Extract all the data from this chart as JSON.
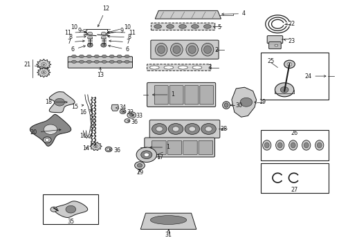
{
  "bg_color": "#ffffff",
  "line_color": "#1a1a1a",
  "figsize": [
    4.9,
    3.6
  ],
  "dpi": 100,
  "label_fontsize": 5.8,
  "labels": {
    "4": [
      0.695,
      0.947,
      0.72,
      0.947
    ],
    "5": [
      0.62,
      0.892,
      0.655,
      0.892
    ],
    "2": [
      0.61,
      0.785,
      0.64,
      0.785
    ],
    "3": [
      0.58,
      0.718,
      0.612,
      0.718
    ],
    "1a": [
      0.558,
      0.598,
      0.528,
      0.598
    ],
    "19": [
      0.74,
      0.588,
      0.768,
      0.588
    ],
    "30": [
      0.672,
      0.572,
      0.7,
      0.572
    ],
    "28": [
      0.63,
      0.465,
      0.66,
      0.465
    ],
    "1b": [
      0.54,
      0.4,
      0.51,
      0.4
    ],
    "17": [
      0.44,
      0.372,
      0.465,
      0.355
    ],
    "29": [
      0.412,
      0.33,
      0.432,
      0.31
    ],
    "31": [
      0.497,
      0.065,
      0.497,
      0.038
    ],
    "12": [
      0.312,
      0.96,
      0.312,
      0.98
    ],
    "10a": [
      0.245,
      0.892,
      0.218,
      0.892
    ],
    "10b": [
      0.345,
      0.892,
      0.372,
      0.892
    ],
    "9a": [
      0.258,
      0.878,
      0.232,
      0.878
    ],
    "9b": [
      0.33,
      0.878,
      0.356,
      0.878
    ],
    "11a": [
      0.23,
      0.87,
      0.202,
      0.87
    ],
    "11b": [
      0.362,
      0.87,
      0.39,
      0.87
    ],
    "8a": [
      0.238,
      0.852,
      0.21,
      0.852
    ],
    "8b": [
      0.352,
      0.852,
      0.38,
      0.852
    ],
    "7a": [
      0.232,
      0.83,
      0.205,
      0.83
    ],
    "7b": [
      0.35,
      0.83,
      0.377,
      0.83
    ],
    "6a": [
      0.244,
      0.8,
      0.218,
      0.8
    ],
    "6b": [
      0.348,
      0.8,
      0.374,
      0.8
    ],
    "13": [
      0.29,
      0.718,
      0.29,
      0.695
    ],
    "21": [
      0.112,
      0.728,
      0.088,
      0.728
    ],
    "18": [
      0.172,
      0.588,
      0.148,
      0.588
    ],
    "15": [
      0.25,
      0.572,
      0.225,
      0.572
    ],
    "16a": [
      0.278,
      0.548,
      0.253,
      0.548
    ],
    "34": [
      0.335,
      0.568,
      0.358,
      0.568
    ],
    "32": [
      0.36,
      0.548,
      0.382,
      0.548
    ],
    "33": [
      0.382,
      0.535,
      0.405,
      0.535
    ],
    "36a": [
      0.37,
      0.51,
      0.392,
      0.51
    ],
    "20": [
      0.128,
      0.468,
      0.103,
      0.468
    ],
    "16b": [
      0.27,
      0.458,
      0.245,
      0.458
    ],
    "14": [
      0.282,
      0.405,
      0.258,
      0.405
    ],
    "36b": [
      0.318,
      0.395,
      0.343,
      0.395
    ],
    "22": [
      0.83,
      0.908,
      0.858,
      0.908
    ],
    "23": [
      0.83,
      0.832,
      0.858,
      0.832
    ],
    "24": [
      0.88,
      0.7,
      0.905,
      0.7
    ],
    "25": [
      0.815,
      0.752,
      0.815,
      0.752
    ],
    "26": [
      0.82,
      0.435,
      0.82,
      0.435
    ],
    "27": [
      0.82,
      0.278,
      0.82,
      0.278
    ],
    "35": [
      0.192,
      0.098,
      0.192,
      0.098
    ]
  }
}
